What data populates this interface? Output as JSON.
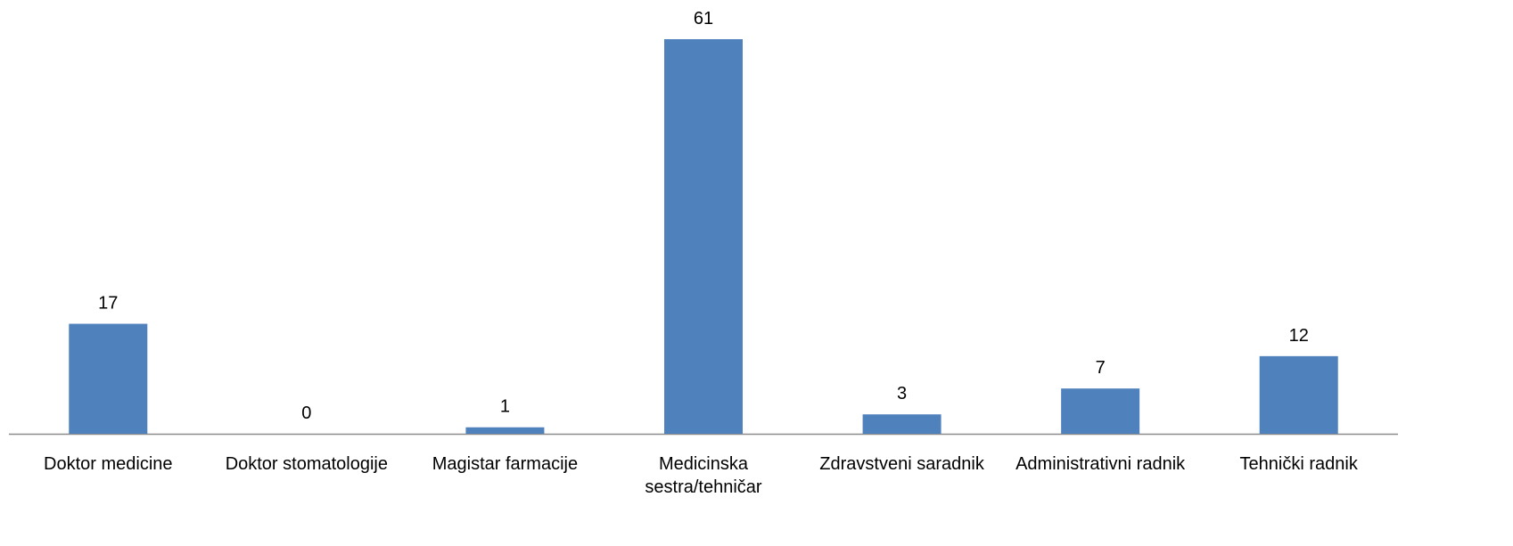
{
  "chart_data": {
    "type": "bar",
    "categories": [
      "Doktor medicine",
      "Doktor stomatologije",
      "Magistar farmacije",
      "Medicinska sestra/tehničar",
      "Zdravstveni saradnik",
      "Administrativni radnik",
      "Tehnički radnik"
    ],
    "values": [
      17,
      0,
      1,
      61,
      3,
      7,
      12
    ],
    "color": "#4f81bd"
  }
}
